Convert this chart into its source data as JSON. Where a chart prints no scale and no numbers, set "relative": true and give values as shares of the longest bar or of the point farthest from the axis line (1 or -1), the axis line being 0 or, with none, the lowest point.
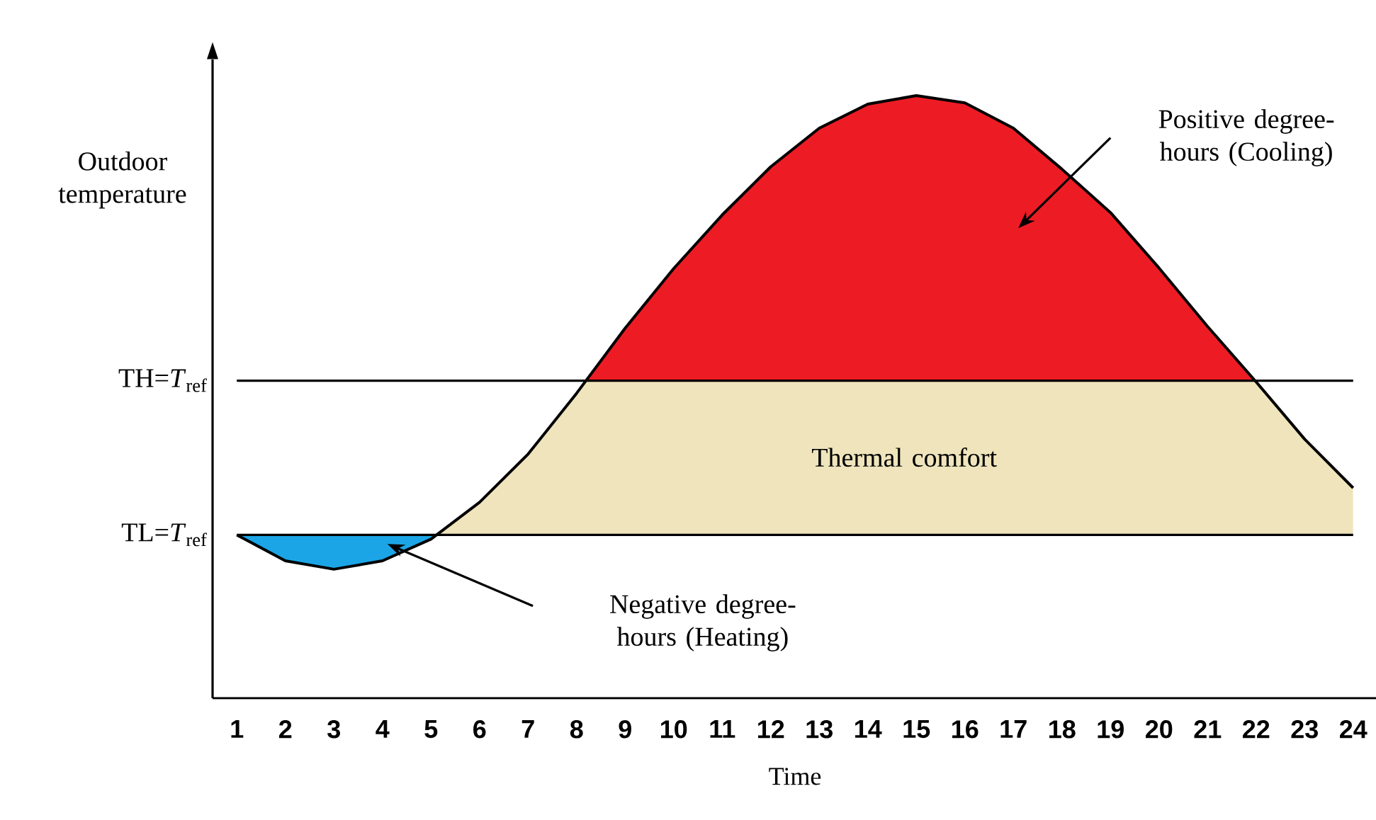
{
  "chart_data": {
    "type": "line",
    "relative": true,
    "ylabel": "Outdoor temperature",
    "xlabel": "Time",
    "x": [
      1,
      2,
      3,
      4,
      5,
      6,
      7,
      8,
      9,
      10,
      11,
      12,
      13,
      14,
      15,
      16,
      17,
      18,
      19,
      20,
      21,
      22,
      23,
      24
    ],
    "xlim": [
      0.5,
      24.5
    ],
    "xticks": [
      1,
      2,
      3,
      4,
      5,
      6,
      7,
      8,
      9,
      10,
      11,
      12,
      13,
      14,
      15,
      16,
      17,
      18,
      19,
      20,
      21,
      22,
      23,
      24
    ],
    "series": [
      {
        "color": "#000000",
        "values": [
          0.271,
          0.228,
          0.214,
          0.228,
          0.264,
          0.325,
          0.405,
          0.506,
          0.614,
          0.713,
          0.802,
          0.882,
          0.946,
          0.986,
          1,
          0.988,
          0.946,
          0.878,
          0.806,
          0.714,
          0.617,
          0.525,
          0.43,
          0.349
        ]
      }
    ],
    "ref_lines": [
      {
        "axis": "y",
        "value": 0.527,
        "label": "TH=*T*$_{ref}$",
        "color": "#000000"
      },
      {
        "axis": "y",
        "value": 0.271,
        "label": "TL=*T*$_{ref}$",
        "color": "#000000"
      }
    ],
    "bands": [
      {
        "axis": "y",
        "from": 0.527,
        "to": 1,
        "label": "Positive degree-hours (Cooling)",
        "color": "#ed1c24"
      },
      {
        "axis": "y",
        "from": 0.271,
        "to": 0.527,
        "label": "Thermal comfort",
        "color": "#efe4bc"
      },
      {
        "axis": "y",
        "from": 0,
        "to": 0.271,
        "label": "Negative degree-hours (Heating)",
        "color": "#1ba5e6"
      }
    ],
    "grid": false,
    "marker": "none",
    "line_style": "solid"
  }
}
